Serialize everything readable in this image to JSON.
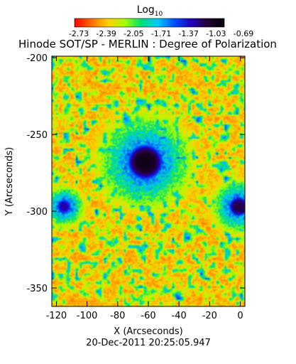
{
  "colorbar": {
    "label": "Log",
    "label_sub": "10",
    "ticks": [
      "-2.73",
      "-2.39",
      "-2.05",
      "-1.71",
      "-1.37",
      "-1.03",
      "-0.69"
    ],
    "range": [
      -2.73,
      -0.69
    ],
    "colormap": [
      "#ff0000",
      "#ff6a00",
      "#ffd000",
      "#a8ff00",
      "#00e070",
      "#00c8ff",
      "#0050ff",
      "#2000c0",
      "#220033",
      "#000000"
    ]
  },
  "chart_data": {
    "type": "heatmap",
    "title": "Hinode SOT/SP - MERLIN : Degree of Polarization",
    "xlabel": "X (Arcseconds)",
    "ylabel": "Y (Arcseconds)",
    "xlim": [
      -123,
      3
    ],
    "ylim": [
      -362,
      -199
    ],
    "xticks": [
      -120,
      -100,
      -80,
      -60,
      -40,
      -20,
      0
    ],
    "yticks": [
      -350,
      -300,
      -250,
      -200
    ],
    "xtick_labels": [
      "-120",
      "-100",
      "-80",
      "-60",
      "-40",
      "-20",
      "0"
    ],
    "ytick_labels": [
      "-350",
      "-300",
      "-250",
      "-200"
    ],
    "value_range": [
      -2.73,
      -0.69
    ],
    "features": [
      {
        "kind": "sunspot",
        "x": -62,
        "y": -268,
        "radius": 14,
        "peak": -0.8
      },
      {
        "kind": "pore",
        "x": -1,
        "y": -297,
        "radius": 8,
        "peak": -0.95
      },
      {
        "kind": "pore",
        "x": -115,
        "y": -297,
        "radius": 6,
        "peak": -1.1
      }
    ]
  },
  "footer": {
    "timestamp": "20-Dec-2011 20:25:05.947"
  }
}
